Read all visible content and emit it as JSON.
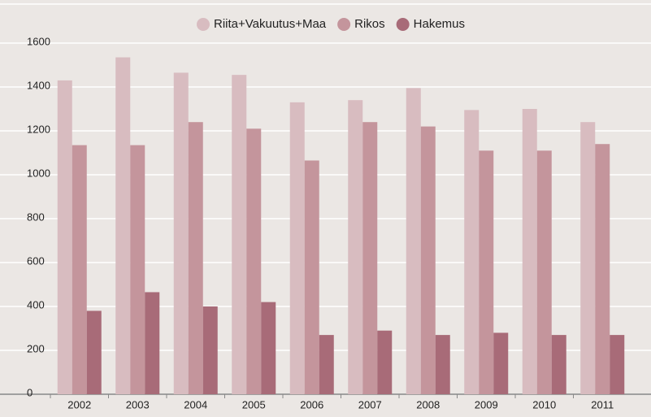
{
  "chart_data": {
    "type": "bar",
    "categories": [
      "2002",
      "2003",
      "2004",
      "2005",
      "2006",
      "2007",
      "2008",
      "2009",
      "2010",
      "2011"
    ],
    "series": [
      {
        "name": "Riita+Vakuutus+Maa",
        "color": "#d8bcc0",
        "values": [
          1430,
          1535,
          1465,
          1455,
          1330,
          1340,
          1395,
          1295,
          1300,
          1240
        ]
      },
      {
        "name": "Rikos",
        "color": "#c4959c",
        "values": [
          1135,
          1135,
          1240,
          1210,
          1065,
          1240,
          1220,
          1110,
          1110,
          1140
        ]
      },
      {
        "name": "Hakemus",
        "color": "#a86b78",
        "values": [
          380,
          465,
          400,
          420,
          270,
          290,
          270,
          280,
          270,
          270
        ]
      }
    ],
    "ylim": [
      0,
      1600
    ],
    "yticks": [
      0,
      200,
      400,
      600,
      800,
      1000,
      1200,
      1400,
      1600
    ],
    "grid": true,
    "legend": "top"
  }
}
